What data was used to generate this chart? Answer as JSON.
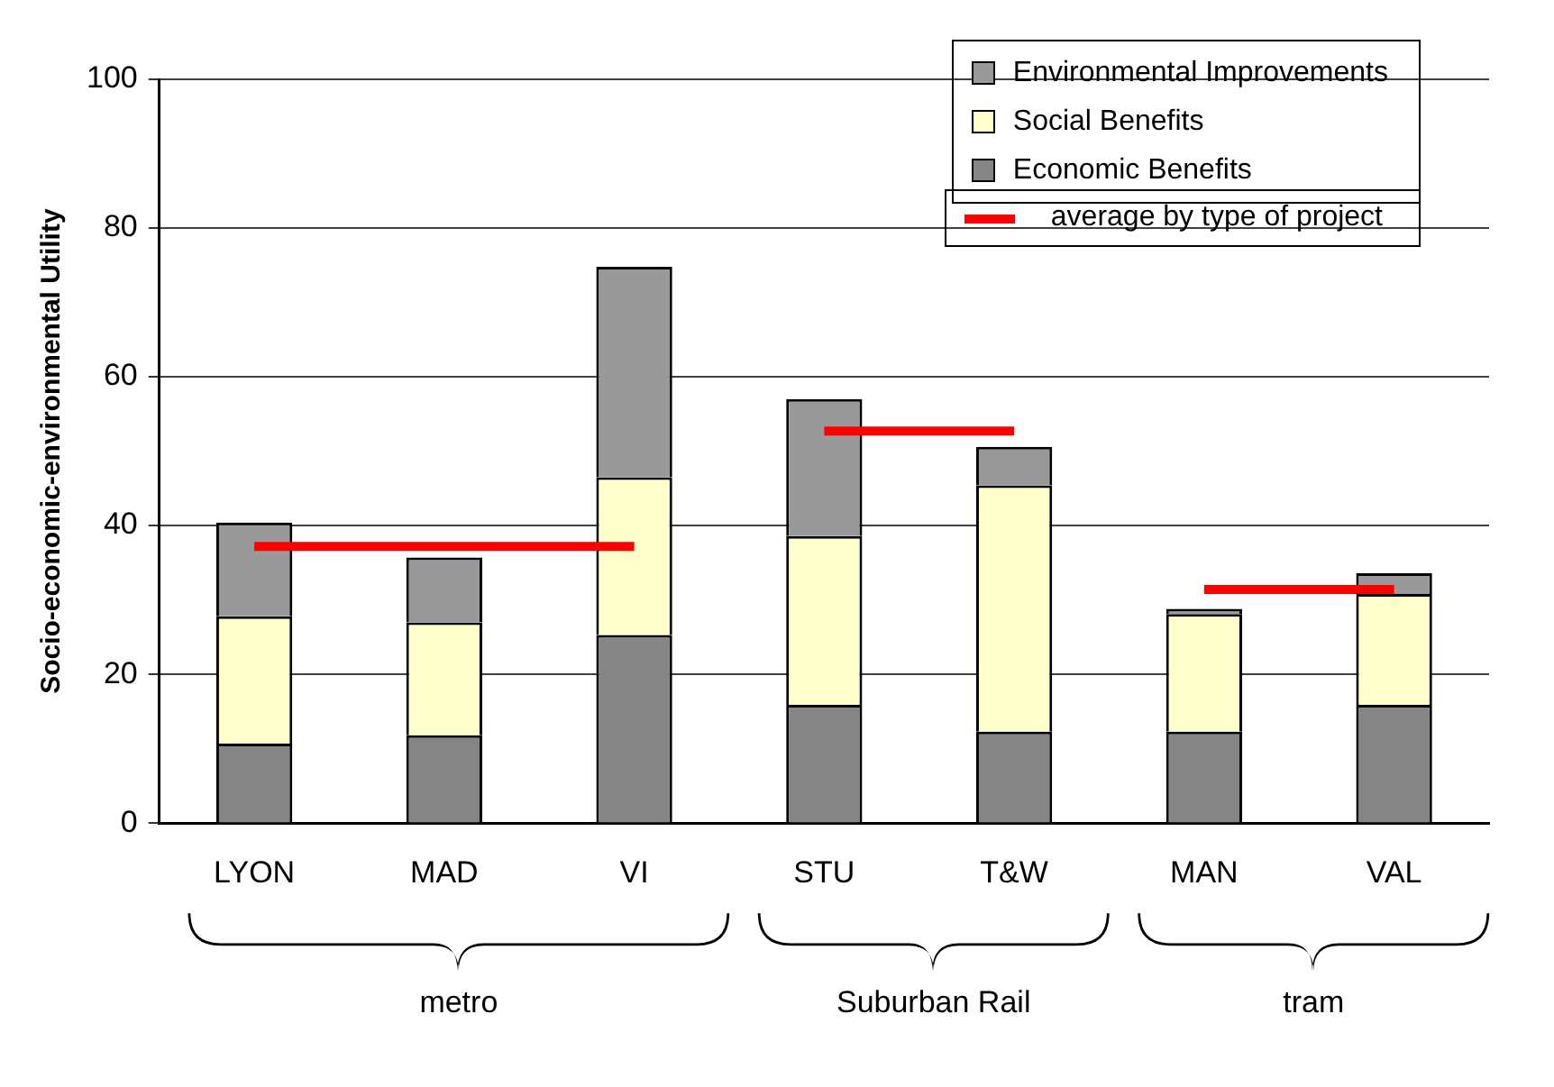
{
  "chart_data": {
    "type": "bar",
    "ylabel": "Socio-economic-environmental Utility",
    "categories": [
      "LYON",
      "MAD",
      "VI",
      "STU",
      "T&W",
      "MAN",
      "VAL"
    ],
    "series": [
      {
        "name": "Economic Benefits",
        "color": "#858585",
        "values": [
          10.7,
          11.8,
          25.3,
          15.9,
          12.3,
          12.3,
          15.9
        ]
      },
      {
        "name": "Social Benefits",
        "color": "#ffffcc",
        "values": [
          17.1,
          15.2,
          21.2,
          22.7,
          33.1,
          15.8,
          14.9
        ]
      },
      {
        "name": "Environmental Improvements",
        "color": "#999999",
        "values": [
          12.6,
          8.7,
          28.3,
          18.4,
          5.2,
          0.7,
          2.8
        ]
      },
      {
        "name": "average by type of project",
        "type": "line",
        "color": "#ff0000",
        "values": [
          37.2,
          37.2,
          37.2,
          null,
          null,
          null,
          null
        ]
      },
      {
        "type": "line",
        "color": "#ff0000",
        "values": [
          null,
          null,
          null,
          52.7,
          52.7,
          null,
          null
        ]
      },
      {
        "type": "line",
        "color": "#ff0000",
        "values": [
          null,
          null,
          null,
          null,
          null,
          31.4,
          31.4
        ]
      }
    ],
    "annotations": [
      "metro",
      "Suburban Rail",
      "tram"
    ],
    "stacked": true,
    "ylim": [
      0,
      100
    ],
    "yticks": [
      0,
      20,
      40,
      60,
      80,
      100
    ],
    "grid": "y",
    "legend": "top right",
    "marker": "none",
    "line_style": "solid"
  }
}
